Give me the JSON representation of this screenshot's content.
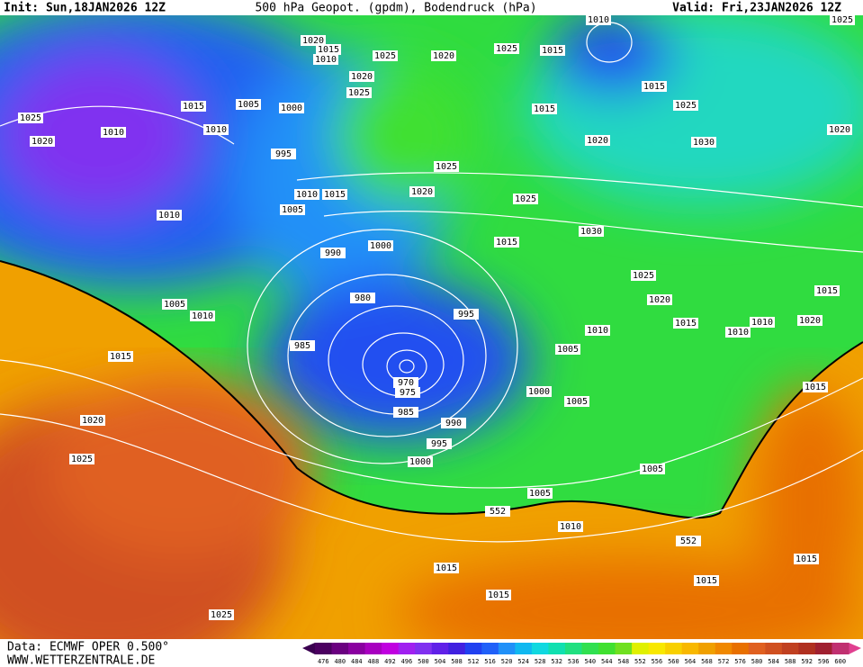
{
  "header": {
    "init": "Init: Sun,18JAN2026 12Z",
    "title": "500 hPa Geopot. (gpdm), Bodendruck (hPa)",
    "valid": "Valid: Fri,23JAN2026 12Z"
  },
  "footer": {
    "data": "Data: ECMWF OPER 0.500°",
    "site": "WWW.WETTERZENTRALE.DE"
  },
  "colorbar": {
    "values": [
      476,
      480,
      484,
      488,
      492,
      496,
      500,
      504,
      508,
      512,
      516,
      520,
      524,
      528,
      532,
      536,
      540,
      544,
      548,
      552,
      556,
      560,
      564,
      568,
      572,
      576,
      580,
      584,
      588,
      592,
      596,
      600
    ],
    "colors": [
      "#4b0060",
      "#6a0080",
      "#8a00a0",
      "#a800c0",
      "#c000e0",
      "#a020f0",
      "#8030f0",
      "#6020e8",
      "#4020e0",
      "#2040f0",
      "#2060f8",
      "#2090f8",
      "#10b8f0",
      "#10d8e0",
      "#10e0b0",
      "#20e080",
      "#30e050",
      "#40e030",
      "#70e020",
      "#e0f000",
      "#f8e800",
      "#f8d000",
      "#f8b800",
      "#f0a000",
      "#f08800",
      "#e87000",
      "#e06020",
      "#d05020",
      "#c04020",
      "#b03020",
      "#a02030",
      "#c03070"
    ]
  },
  "isobar_labels": [
    "1020",
    "1015",
    "1010",
    "1025",
    "1020",
    "1025",
    "1015",
    "1010",
    "1025",
    "1025",
    "1020",
    "1010",
    "1015",
    "1010",
    "1005",
    "1000",
    "1020",
    "1025",
    "1015",
    "1015",
    "1025",
    "1020",
    "1030",
    "1020",
    "995",
    "1025",
    "1010",
    "1015",
    "1020",
    "1025",
    "1005",
    "1010",
    "1000",
    "1015",
    "1030",
    "990",
    "1025",
    "1015",
    "1005",
    "980",
    "1020",
    "1010",
    "995",
    "1015",
    "1010",
    "1020",
    "1010",
    "1010",
    "985",
    "1005",
    "1015",
    "970",
    "975",
    "1015",
    "1000",
    "1005",
    "985",
    "1020",
    "990",
    "995",
    "1025",
    "1000",
    "1005",
    "1005",
    "552",
    "1010",
    "552",
    "1015",
    "1015",
    "1015",
    "1015",
    "1025"
  ]
}
